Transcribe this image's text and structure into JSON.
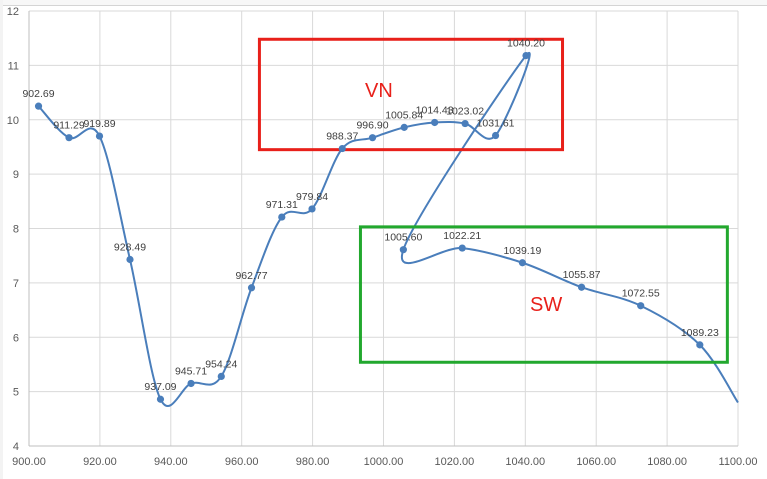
{
  "chart_data": {
    "type": "scatter",
    "title": "",
    "xlabel": "",
    "ylabel": "",
    "xlim": [
      900,
      1100
    ],
    "ylim": [
      4,
      12
    ],
    "xticks": [
      "900.00",
      "920.00",
      "940.00",
      "960.00",
      "980.00",
      "1000.00",
      "1020.00",
      "1040.00",
      "1060.00",
      "1080.00",
      "1100.00"
    ],
    "yticks": [
      "4",
      "5",
      "6",
      "7",
      "8",
      "9",
      "10",
      "11",
      "12"
    ],
    "grid": "horizontal and vertical",
    "legend": "none",
    "line_color": "#4a7ebb",
    "series": [
      {
        "points": [
          {
            "x": 902.69,
            "y": 10.25,
            "label": "902.69"
          },
          {
            "x": 911.29,
            "y": 9.67,
            "label": "911.29"
          },
          {
            "x": 919.89,
            "y": 9.7,
            "label": "919.89"
          },
          {
            "x": 928.49,
            "y": 7.43,
            "label": "928.49"
          },
          {
            "x": 937.09,
            "y": 4.86,
            "label": "937.09"
          },
          {
            "x": 945.71,
            "y": 5.15,
            "label": "945.71"
          },
          {
            "x": 954.24,
            "y": 5.28,
            "label": "954.24"
          },
          {
            "x": 962.77,
            "y": 6.91,
            "label": "962.77"
          },
          {
            "x": 971.31,
            "y": 8.21,
            "label": "971.31"
          },
          {
            "x": 979.84,
            "y": 8.36,
            "label": "979.84"
          },
          {
            "x": 988.37,
            "y": 9.47,
            "label": "988.37"
          },
          {
            "x": 996.9,
            "y": 9.67,
            "label": "996.90"
          },
          {
            "x": 1005.84,
            "y": 9.86,
            "label": "1005.84"
          },
          {
            "x": 1014.43,
            "y": 9.95,
            "label": "1014.43"
          },
          {
            "x": 1023.02,
            "y": 9.93,
            "label": "1023.02"
          },
          {
            "x": 1031.61,
            "y": 9.71,
            "label": "1031.61"
          },
          {
            "x": 1040.2,
            "y": 11.18,
            "label": "1040.20"
          },
          {
            "x": 1005.6,
            "y": 7.61,
            "label": "1005.60"
          },
          {
            "x": 1022.21,
            "y": 7.64,
            "label": "1022.21"
          },
          {
            "x": 1039.19,
            "y": 7.37,
            "label": "1039.19"
          },
          {
            "x": 1055.87,
            "y": 6.92,
            "label": "1055.87"
          },
          {
            "x": 1072.55,
            "y": 6.58,
            "label": "1072.55"
          },
          {
            "x": 1089.23,
            "y": 5.86,
            "label": "1089.23"
          }
        ],
        "tail": {
          "x": 1100,
          "y": 4.8
        }
      }
    ],
    "annotations": [
      {
        "text": "VN",
        "color": "#e8201a",
        "x_range": [
          965,
          1050.5
        ],
        "y_range": [
          9.45,
          11.48
        ]
      },
      {
        "text": "SW",
        "color": "#22a82e",
        "label_color": "#e8201a",
        "x_range": [
          993.5,
          1097
        ],
        "y_range": [
          5.54,
          8.03
        ]
      }
    ]
  }
}
